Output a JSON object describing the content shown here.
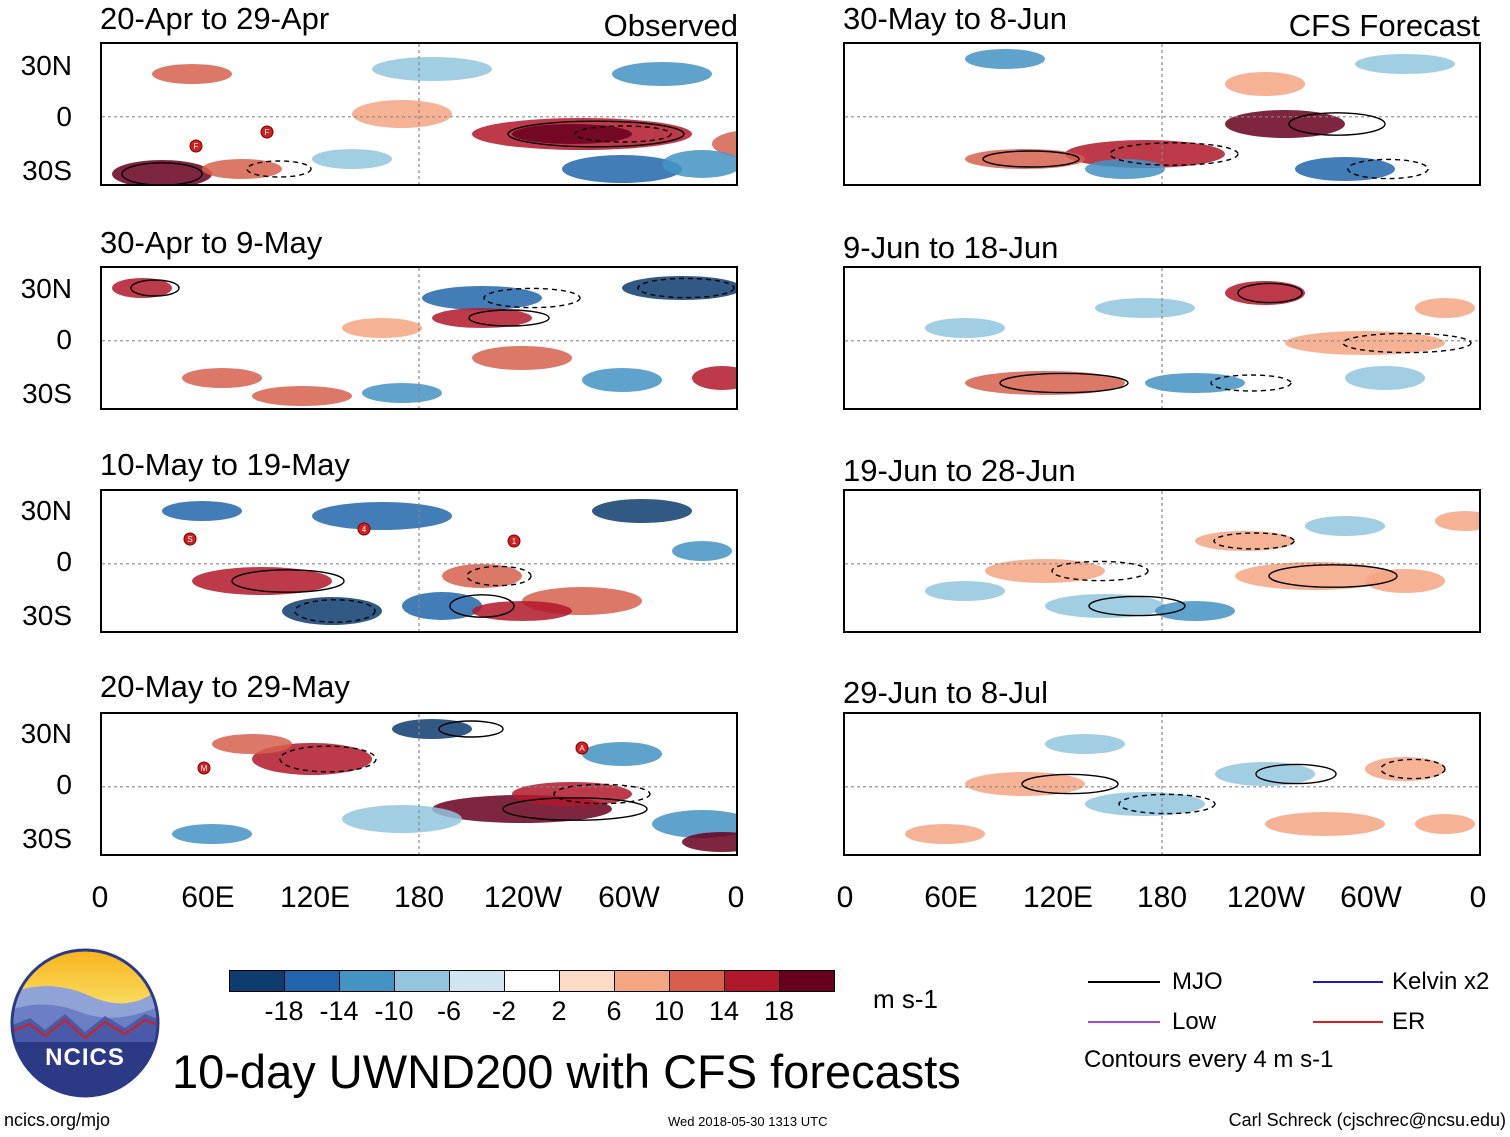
{
  "panels": {
    "observed": [
      {
        "title": "20-Apr to 29-Apr",
        "source_label": "Observed"
      },
      {
        "title": "30-Apr to 9-May"
      },
      {
        "title": "10-May to 19-May"
      },
      {
        "title": "20-May to 29-May"
      }
    ],
    "forecast": [
      {
        "title": "30-May to 8-Jun",
        "source_label": "CFS Forecast"
      },
      {
        "title": "9-Jun to 18-Jun"
      },
      {
        "title": "19-Jun to 28-Jun"
      },
      {
        "title": "29-Jun to 8-Jul"
      }
    ]
  },
  "lat_labels": [
    "30N",
    "0",
    "30S"
  ],
  "lon_labels": [
    "0",
    "60E",
    "120E",
    "180",
    "120W",
    "60W",
    "0"
  ],
  "colorbar": {
    "colors": [
      "#0d3c6e",
      "#2166ac",
      "#4393c3",
      "#92c5de",
      "#d1e5f0",
      "#ffffff",
      "#fddbc7",
      "#f4a582",
      "#d6604d",
      "#b2182b",
      "#67001f"
    ],
    "labels": [
      "-18",
      "-14",
      "-10",
      "-6",
      "-2",
      "2",
      "6",
      "10",
      "14",
      "18"
    ],
    "units": "m s-1"
  },
  "legend": {
    "items": [
      {
        "label": "MJO",
        "color": "#000000"
      },
      {
        "label": "Kelvin x2",
        "color": "#1a1acc"
      },
      {
        "label": "Low",
        "color": "#a24ad6"
      },
      {
        "label": "ER",
        "color": "#d81e1e"
      }
    ],
    "contour_note": "Contours every 4 m s-1"
  },
  "logo_text": "NCICS",
  "main_title": "10-day UWND200 with CFS forecasts",
  "footer": {
    "left": "ncics.org/mjo",
    "center": "Wed 2018-05-30 1313 UTC",
    "right": "Carl Schreck (cjschrec@ncsu.edu)"
  },
  "storm_markers": {
    "panel_1": [
      "F",
      "F"
    ],
    "panel_3": [
      "S",
      "4",
      "1"
    ],
    "panel_4": [
      "M",
      "A"
    ]
  }
}
